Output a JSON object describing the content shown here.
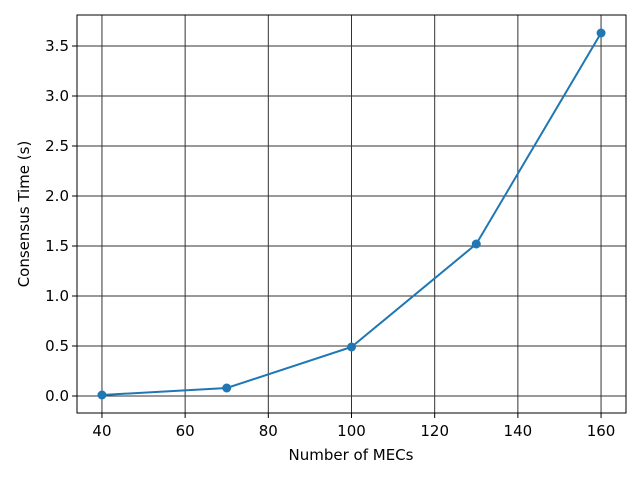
{
  "chart_data": {
    "type": "line",
    "xlabel": "Number of MECs",
    "ylabel": "Consensus Time (s)",
    "x": [
      40,
      70,
      100,
      130,
      160
    ],
    "series": [
      {
        "color": "#1f77b4",
        "values": [
          0.01,
          0.08,
          0.49,
          1.52,
          3.63
        ]
      }
    ],
    "xlim": [
      34,
      166
    ],
    "xticks": [
      40,
      60,
      80,
      100,
      120,
      140,
      160
    ],
    "ylim": [
      -0.17,
      3.81
    ],
    "yticks": [
      {
        "value": 0,
        "label": "0.0"
      },
      0.5,
      {
        "value": 1,
        "label": "1.0"
      },
      1.5,
      {
        "value": 2,
        "label": "2.0"
      },
      2.5,
      {
        "value": 3,
        "label": "3.0"
      },
      3.5
    ],
    "grid": true
  }
}
